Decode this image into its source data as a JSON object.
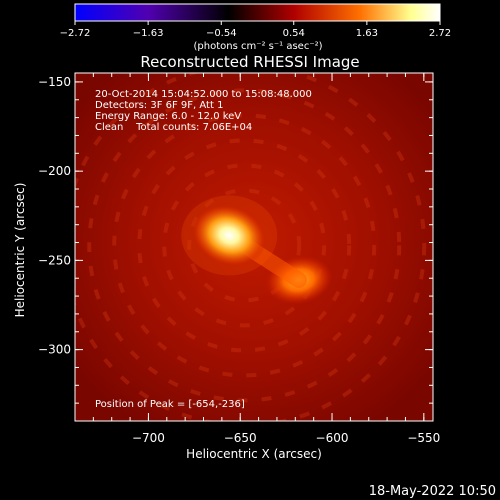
{
  "chart_data": {
    "type": "heatmap",
    "title": "Reconstructed RHESSI Image",
    "xlabel": "Heliocentric X (arcsec)",
    "ylabel": "Heliocentric Y (arcsec)",
    "x_range": [
      -740,
      -545
    ],
    "y_range": [
      -340,
      -145
    ],
    "x_ticks": [
      -700,
      -650,
      -600,
      -550
    ],
    "y_ticks": [
      -150,
      -200,
      -250,
      -300
    ],
    "x_tick_labels": [
      "−700",
      "−650",
      "−600",
      "−550"
    ],
    "y_tick_labels": [
      "−150",
      "−200",
      "−250",
      "−300"
    ],
    "colorbar": {
      "min": -2.72,
      "max": 2.72,
      "ticks": [
        -2.72,
        -1.63,
        -0.54,
        0.54,
        1.63,
        2.72
      ],
      "tick_labels": [
        "−2.72",
        "−1.63",
        "−0.54",
        "0.54",
        "1.63",
        "2.72"
      ],
      "units_label": "(photons cm⁻² s⁻¹ asec⁻²)",
      "colormap": [
        "#0000ff",
        "#5000b0",
        "#000000",
        "#b00000",
        "#ff7000",
        "#ffff90",
        "#ffffff"
      ]
    },
    "sources": [
      {
        "x": -656,
        "y": -236,
        "level": 1.0
      },
      {
        "x": -618,
        "y": -261,
        "level": 0.72
      }
    ],
    "info_lines": [
      "20-Oct-2014 15:04:52.000 to 15:08:48.000",
      "Detectors: 3F 6F 9F, Att 1",
      "Energy Range: 6.0 - 12.0 keV",
      "Clean    Total counts: 7.06E+04"
    ],
    "peak_label": "Position of Peak = [-654,-236]",
    "peak_position": [
      -654,
      -236
    ]
  },
  "footer": {
    "timestamp": "18-May-2022 10:50"
  }
}
